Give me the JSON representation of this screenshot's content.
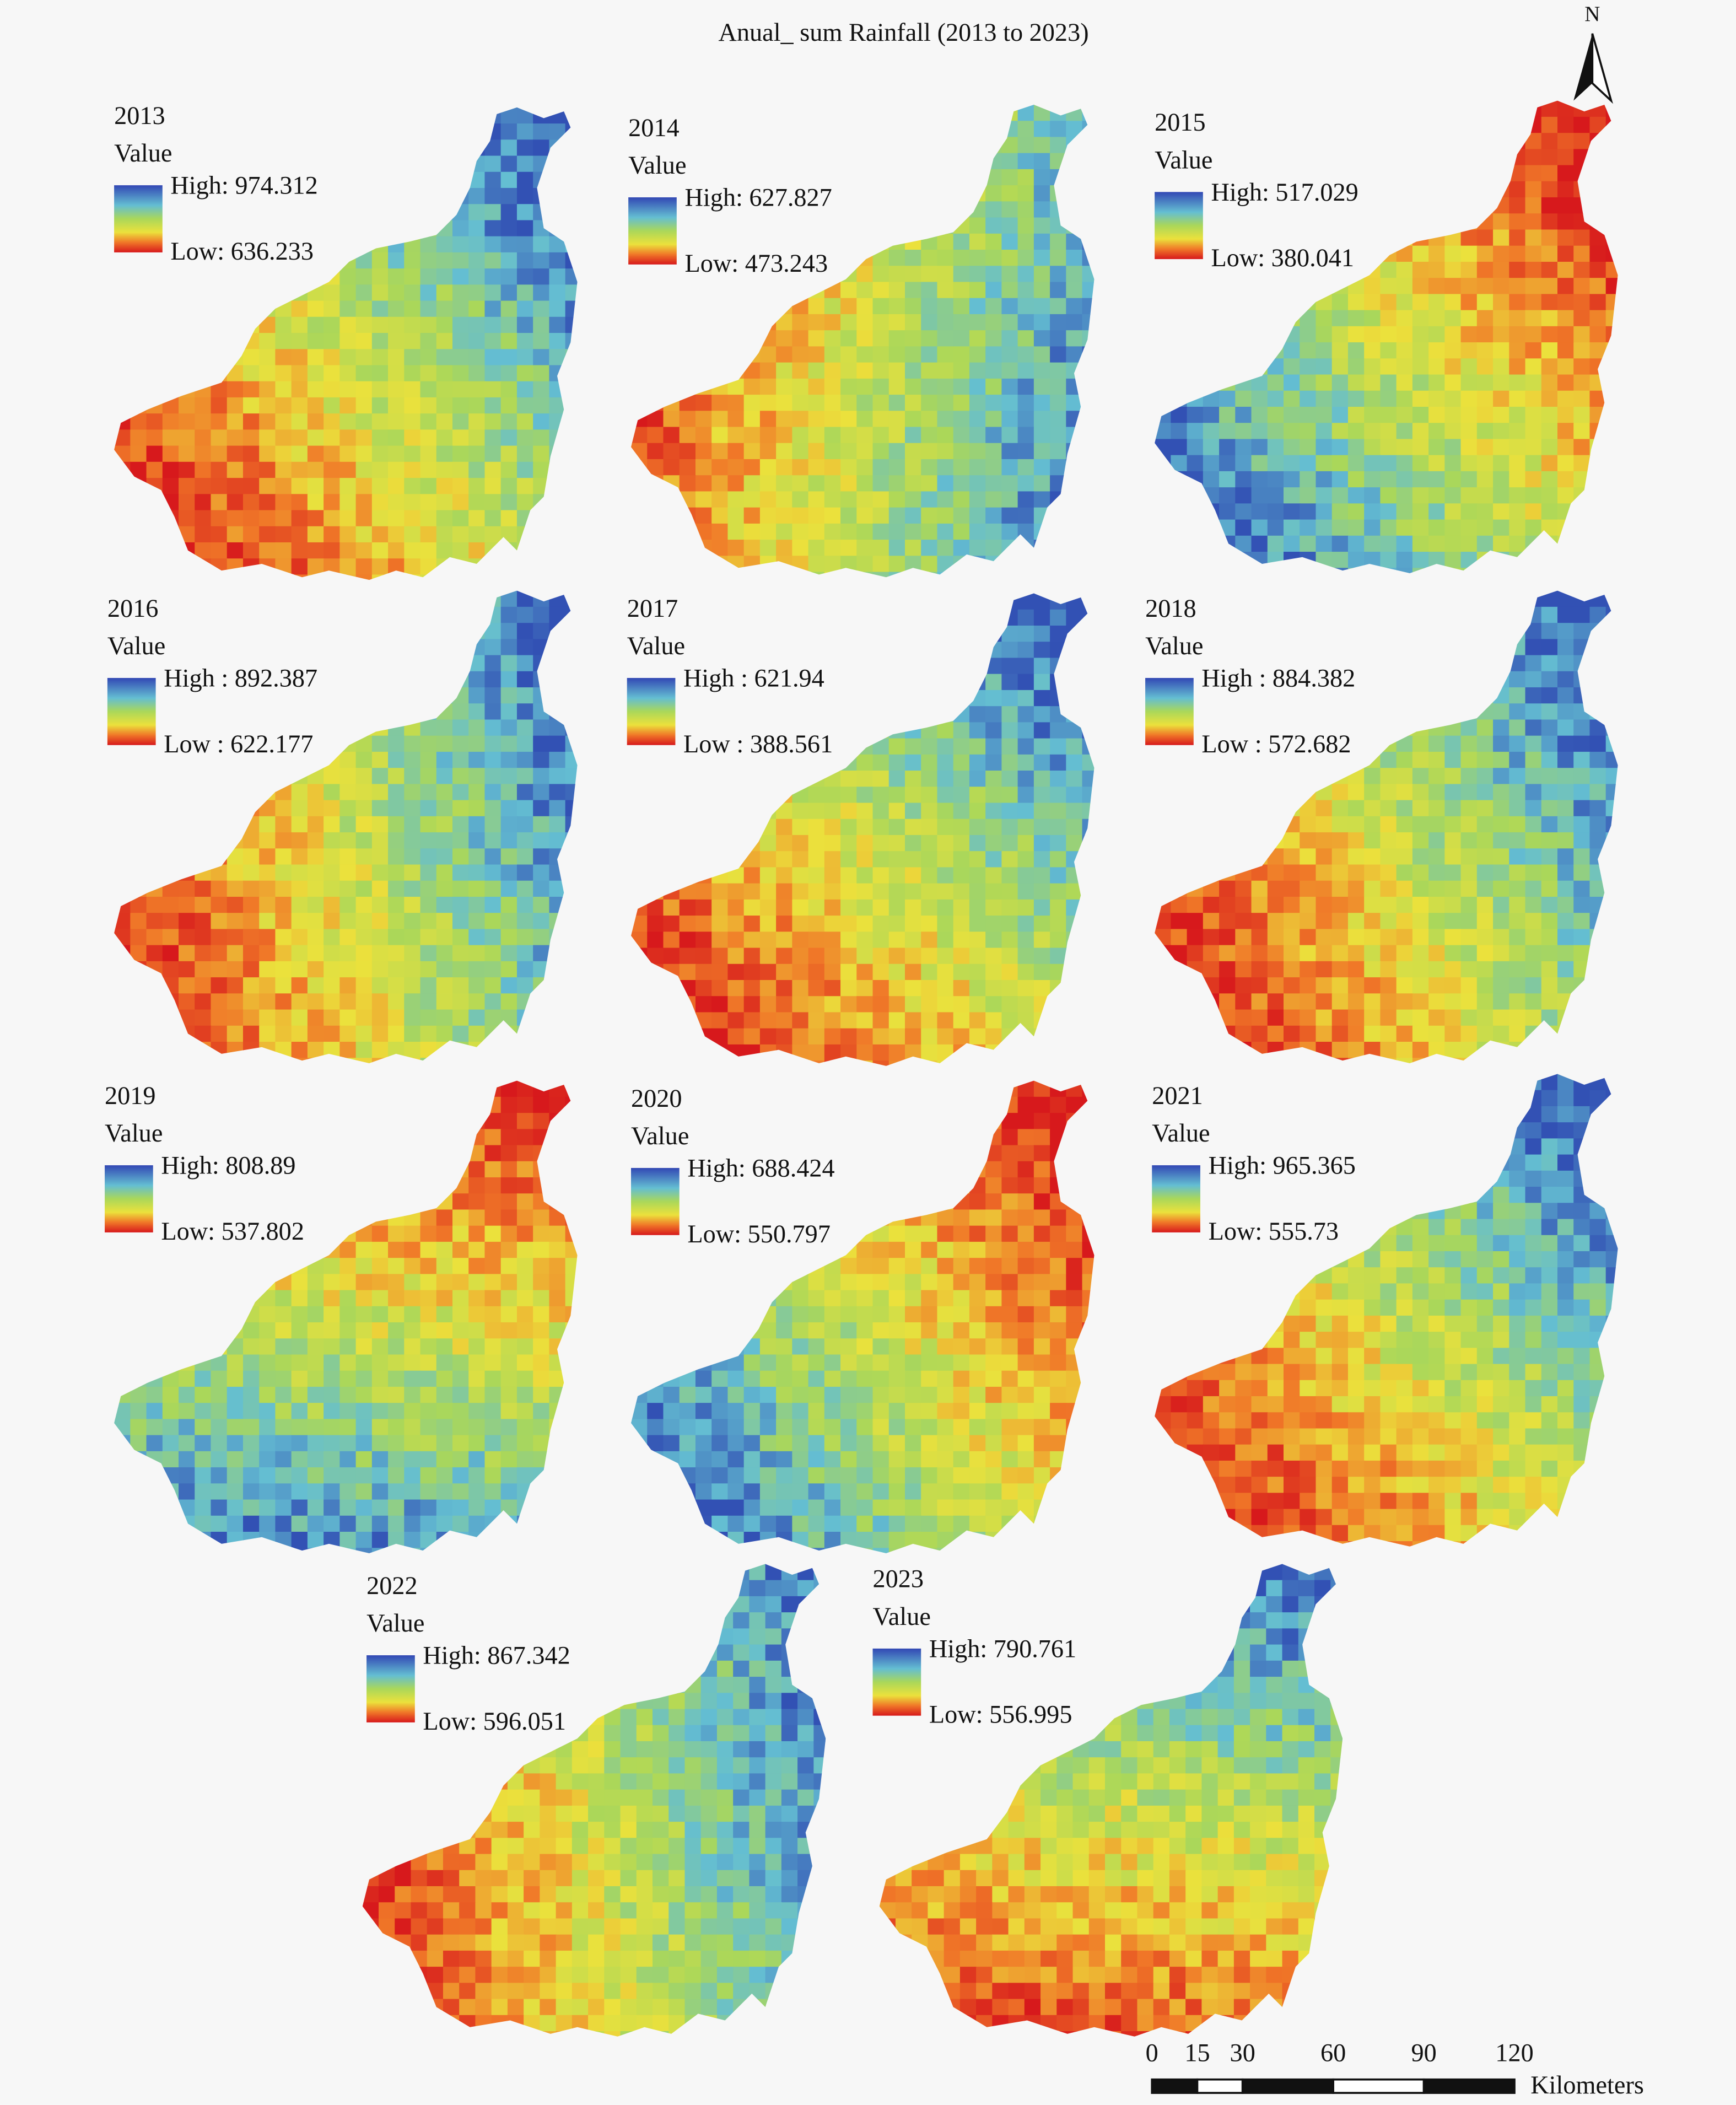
{
  "title": "Anual_ sum Rainfall (2013 to 2023)",
  "north": "N",
  "panels": [
    {
      "year": "2013",
      "legend_title": "Value",
      "high": "High: 974.312",
      "low": "Low: 636.233"
    },
    {
      "year": "2014",
      "legend_title": "Value",
      "high": "High: 627.827",
      "low": "Low: 473.243"
    },
    {
      "year": "2015",
      "legend_title": "Value",
      "high": "High: 517.029",
      "low": "Low: 380.041"
    },
    {
      "year": "2016",
      "legend_title": "Value",
      "high": "High : 892.387",
      "low": "Low : 622.177"
    },
    {
      "year": "2017",
      "legend_title": "Value",
      "high": "High : 621.94",
      "low": "Low : 388.561"
    },
    {
      "year": "2018",
      "legend_title": "Value",
      "high": "High : 884.382",
      "low": "Low : 572.682"
    },
    {
      "year": "2019",
      "legend_title": "Value",
      "high": "High: 808.89",
      "low": "Low: 537.802"
    },
    {
      "year": "2020",
      "legend_title": "Value",
      "high": "High: 688.424",
      "low": "Low: 550.797"
    },
    {
      "year": "2021",
      "legend_title": "Value",
      "high": "High: 965.365",
      "low": "Low: 555.73"
    },
    {
      "year": "2022",
      "legend_title": "Value",
      "high": "High: 867.342",
      "low": "Low: 596.051"
    },
    {
      "year": "2023",
      "legend_title": "Value",
      "high": "High: 790.761",
      "low": "Low: 556.995"
    }
  ],
  "scale_bar": {
    "ticks": [
      0,
      15,
      30,
      60,
      90,
      120
    ],
    "unit": "Kilometers"
  }
}
